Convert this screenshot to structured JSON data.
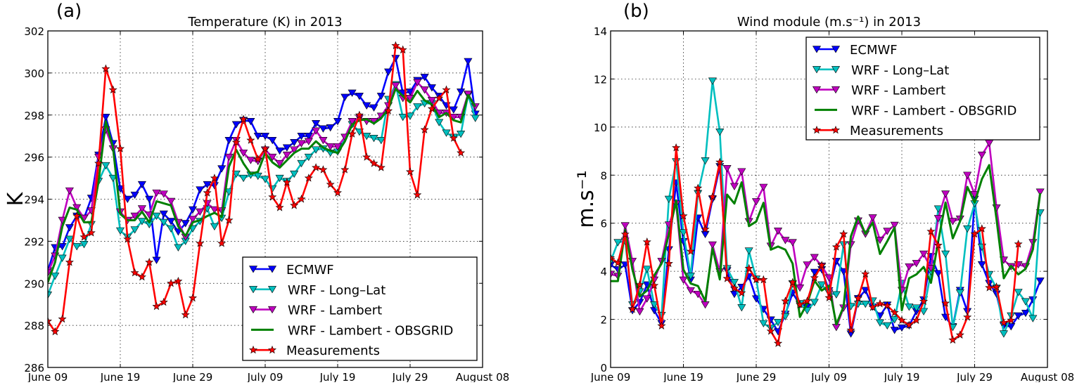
{
  "chart_data": [
    {
      "type": "line",
      "panel_label": "(a)",
      "title": "Temperature (K) in 2013",
      "xlabel": "",
      "ylabel": "K",
      "ylim": [
        286,
        302
      ],
      "yticks": [
        286,
        288,
        290,
        292,
        294,
        296,
        298,
        300,
        302
      ],
      "xlim_days": [
        0,
        60
      ],
      "xticks": [
        {
          "day": 0,
          "label": "June 09"
        },
        {
          "day": 10,
          "label": "June 19"
        },
        {
          "day": 20,
          "label": "June 29"
        },
        {
          "day": 30,
          "label": "July 09"
        },
        {
          "day": 40,
          "label": "July 19"
        },
        {
          "day": 50,
          "label": "July 29"
        },
        {
          "day": 60,
          "label": "August 08"
        }
      ],
      "grid": true,
      "legend_position": "lower-right",
      "series": [
        {
          "name": "ECMWF",
          "color": "#0000ff",
          "marker": "triangle-down",
          "values": [
            290.6,
            291.7,
            291.75,
            292.65,
            293.2,
            293.1,
            294.05,
            296.1,
            297.9,
            296.65,
            294.5,
            294.0,
            294.2,
            294.7,
            294.0,
            291.1,
            293.3,
            292.95,
            292.45,
            292.85,
            293.5,
            294.45,
            294.7,
            294.65,
            295.45,
            296.8,
            297.55,
            297.75,
            297.7,
            297.0,
            297.0,
            296.8,
            296.3,
            296.45,
            296.7,
            297.0,
            297.0,
            297.6,
            297.35,
            297.4,
            297.7,
            298.85,
            299.05,
            298.9,
            298.45,
            298.35,
            298.9,
            300.05,
            300.7,
            299.05,
            299.1,
            299.65,
            299.8,
            299.3,
            298.9,
            298.45,
            298.25,
            299.1,
            300.55,
            298.05
          ]
        },
        {
          "name": "WRF -  Long–Lat",
          "color": "#00bfbf",
          "marker": "triangle-down",
          "values": [
            289.45,
            290.35,
            291.2,
            292.1,
            291.75,
            291.85,
            292.8,
            294.85,
            295.6,
            295.0,
            292.5,
            292.2,
            292.55,
            292.95,
            292.8,
            293.2,
            292.9,
            292.6,
            291.7,
            292.0,
            292.6,
            292.95,
            293.55,
            292.7,
            293.1,
            294.35,
            295.2,
            295.0,
            295.15,
            295.1,
            294.95,
            294.5,
            295.0,
            294.85,
            295.2,
            295.7,
            296.0,
            296.35,
            296.4,
            296.2,
            296.25,
            296.95,
            297.55,
            297.2,
            297.0,
            296.9,
            296.8,
            298.75,
            299.45,
            297.9,
            297.95,
            298.4,
            298.55,
            298.55,
            297.65,
            297.15,
            296.95,
            297.1,
            298.95,
            297.85
          ]
        },
        {
          "name": "WRF - Lambert",
          "color": "#bf00bf",
          "marker": "triangle-down",
          "values": [
            290.5,
            291.3,
            293.0,
            294.4,
            293.6,
            293.1,
            293.45,
            296.0,
            297.3,
            296.4,
            293.4,
            293.0,
            293.2,
            293.55,
            293.25,
            294.3,
            294.25,
            293.9,
            292.9,
            292.2,
            293.05,
            293.4,
            293.8,
            293.5,
            293.45,
            296.0,
            296.8,
            296.2,
            295.85,
            295.8,
            296.35,
            296.0,
            295.7,
            296.1,
            296.35,
            296.65,
            296.75,
            297.25,
            296.8,
            296.5,
            296.5,
            296.95,
            297.7,
            297.85,
            297.7,
            297.7,
            297.95,
            298.45,
            299.4,
            298.8,
            298.8,
            299.55,
            299.2,
            298.7,
            298.1,
            298.1,
            297.9,
            297.9,
            299.0,
            298.4
          ]
        },
        {
          "name": "WRF - Lambert - OBSGRID",
          "color": "#008000",
          "marker": "none",
          "values": [
            290.05,
            291.0,
            292.7,
            293.6,
            293.5,
            292.9,
            292.9,
            294.85,
            297.7,
            296.45,
            293.3,
            293.0,
            293.0,
            293.4,
            292.9,
            293.9,
            293.8,
            293.7,
            292.7,
            292.25,
            292.9,
            293.0,
            293.2,
            293.35,
            293.15,
            295.55,
            296.35,
            295.7,
            295.2,
            295.3,
            296.2,
            295.75,
            295.5,
            295.85,
            296.2,
            296.4,
            296.4,
            296.75,
            296.45,
            296.3,
            296.2,
            296.75,
            297.55,
            297.75,
            297.8,
            297.6,
            297.85,
            298.3,
            299.25,
            298.9,
            298.6,
            299.15,
            298.7,
            298.5,
            297.9,
            298.1,
            297.75,
            297.65,
            298.95,
            298.4
          ]
        },
        {
          "name": "Measurements",
          "color": "#ff0000",
          "marker": "star",
          "values": [
            288.2,
            287.7,
            288.3,
            291.0,
            293.2,
            292.2,
            292.4,
            295.7,
            300.2,
            299.2,
            296.4,
            292.1,
            290.5,
            290.3,
            291.0,
            288.9,
            289.1,
            290.0,
            290.1,
            288.5,
            289.3,
            291.9,
            294.3,
            295.0,
            291.9,
            293.0,
            296.7,
            297.8,
            296.8,
            295.9,
            296.4,
            294.1,
            293.6,
            294.8,
            293.7,
            294.0,
            295.0,
            295.5,
            295.4,
            294.7,
            294.3,
            295.4,
            297.1,
            298.0,
            296.0,
            295.7,
            295.5,
            298.2,
            301.3,
            301.1,
            295.3,
            294.2,
            297.3,
            298.3,
            298.8,
            299.2,
            296.9,
            296.2
          ]
        }
      ]
    },
    {
      "type": "line",
      "panel_label": "(b)",
      "title": "Wind module (m.s⁻¹) in 2013",
      "xlabel": "",
      "ylabel": "m.s⁻¹",
      "ylim": [
        0,
        14
      ],
      "yticks": [
        0,
        2,
        4,
        6,
        8,
        10,
        12,
        14
      ],
      "xlim_days": [
        0,
        60
      ],
      "xticks": [
        {
          "day": 0,
          "label": "June 09"
        },
        {
          "day": 10,
          "label": "June 19"
        },
        {
          "day": 20,
          "label": "June 29"
        },
        {
          "day": 30,
          "label": "July 09"
        },
        {
          "day": 40,
          "label": "July 19"
        },
        {
          "day": 50,
          "label": "July 29"
        },
        {
          "day": 60,
          "label": "August 08"
        }
      ],
      "grid": true,
      "legend_position": "upper-right",
      "series": [
        {
          "name": "ECMWF",
          "color": "#0000ff",
          "marker": "triangle-down",
          "values": [
            4.27,
            4.07,
            4.27,
            2.37,
            2.71,
            3.44,
            2.37,
            1.83,
            4.9,
            7.68,
            5.24,
            3.64,
            6.22,
            5.54,
            7.0,
            8.36,
            4.03,
            3.05,
            3.34,
            3.78,
            2.86,
            2.42,
            1.98,
            1.49,
            2.22,
            3.1,
            2.61,
            2.51,
            3.96,
            4.07,
            3.2,
            4.42,
            3.99,
            1.4,
            2.87,
            3.21,
            2.52,
            2.15,
            2.6,
            1.55,
            1.65,
            1.74,
            2.33,
            2.82,
            4.62,
            3.91,
            2.09,
            1.7,
            3.21,
            2.33,
            7.0,
            4.28,
            3.5,
            3.06,
            1.74,
            1.7,
            2.15,
            2.26,
            2.82,
            3.6
          ]
        },
        {
          "name": "WRF -  Long–Lat",
          "color": "#00bfbf",
          "marker": "triangle-down",
          "values": [
            4.42,
            5.2,
            5.26,
            2.61,
            3.15,
            4.09,
            2.61,
            2.17,
            7.0,
            8.56,
            5.61,
            3.8,
            7.24,
            8.6,
            11.92,
            9.8,
            4.12,
            3.54,
            2.49,
            4.85,
            3.68,
            1.83,
            1.64,
            1.88,
            2.12,
            3.49,
            2.66,
            2.37,
            2.71,
            3.44,
            3.1,
            3.03,
            5.11,
            2.54,
            2.64,
            2.64,
            2.77,
            1.86,
            1.74,
            1.99,
            3.5,
            2.52,
            2.48,
            2.33,
            3.99,
            6.6,
            4.72,
            1.67,
            3.11,
            5.77,
            6.81,
            5.01,
            3.87,
            3.3,
            1.4,
            2.15,
            3.13,
            2.74,
            2.04,
            6.44
          ]
        },
        {
          "name": "WRF - Lambert",
          "color": "#bf00bf",
          "marker": "triangle-down",
          "values": [
            3.88,
            3.8,
            5.9,
            4.42,
            2.32,
            2.86,
            3.64,
            4.42,
            5.93,
            6.8,
            3.64,
            3.2,
            3.05,
            2.61,
            5.1,
            3.98,
            8.28,
            7.53,
            8.15,
            6.07,
            6.9,
            7.5,
            5.05,
            5.68,
            5.29,
            5.2,
            3.31,
            4.27,
            4.58,
            4.22,
            3.73,
            1.67,
            2.48,
            5.11,
            6.1,
            5.55,
            6.23,
            5.3,
            5.67,
            5.92,
            3.21,
            4.19,
            4.33,
            4.72,
            4.13,
            6.2,
            7.22,
            6.08,
            6.18,
            8.0,
            7.2,
            8.84,
            9.33,
            6.64,
            4.47,
            4.2,
            4.28,
            4.2,
            5.2,
            7.3
          ]
        },
        {
          "name": "WRF - Lambert - OBSGRID",
          "color": "#008000",
          "marker": "none",
          "values": [
            3.59,
            3.59,
            5.73,
            4.07,
            2.95,
            3.2,
            3.83,
            4.32,
            5.54,
            6.95,
            4.07,
            3.49,
            3.39,
            2.76,
            4.95,
            3.66,
            7.19,
            6.82,
            7.7,
            5.88,
            6.07,
            6.85,
            4.9,
            5.03,
            4.9,
            4.32,
            2.1,
            2.66,
            3.61,
            3.2,
            3.4,
            1.79,
            2.53,
            5.45,
            6.28,
            5.55,
            6.03,
            4.72,
            5.25,
            5.82,
            2.38,
            3.71,
            3.87,
            4.18,
            3.52,
            5.25,
            6.86,
            5.37,
            6.08,
            7.51,
            6.86,
            7.84,
            8.42,
            6.18,
            3.71,
            4.23,
            3.87,
            4.1,
            4.91,
            7.25
          ]
        },
        {
          "name": "Measurements",
          "color": "#ff0000",
          "marker": "star",
          "values": [
            4.56,
            4.35,
            5.54,
            2.42,
            3.44,
            5.22,
            3.41,
            1.73,
            4.32,
            9.14,
            6.3,
            4.83,
            7.46,
            5.75,
            7.1,
            8.54,
            3.7,
            3.29,
            3.1,
            4.12,
            3.65,
            3.65,
            1.51,
            1.0,
            2.76,
            3.54,
            2.61,
            2.76,
            3.73,
            4.25,
            2.9,
            5.01,
            5.55,
            1.55,
            2.88,
            3.89,
            2.5,
            2.65,
            2.57,
            2.28,
            1.96,
            1.76,
            1.96,
            2.75,
            5.66,
            5.08,
            2.67,
            1.14,
            1.35,
            2.09,
            5.55,
            5.77,
            3.32,
            3.35,
            1.86,
            1.96,
            5.13
          ]
        }
      ]
    }
  ]
}
